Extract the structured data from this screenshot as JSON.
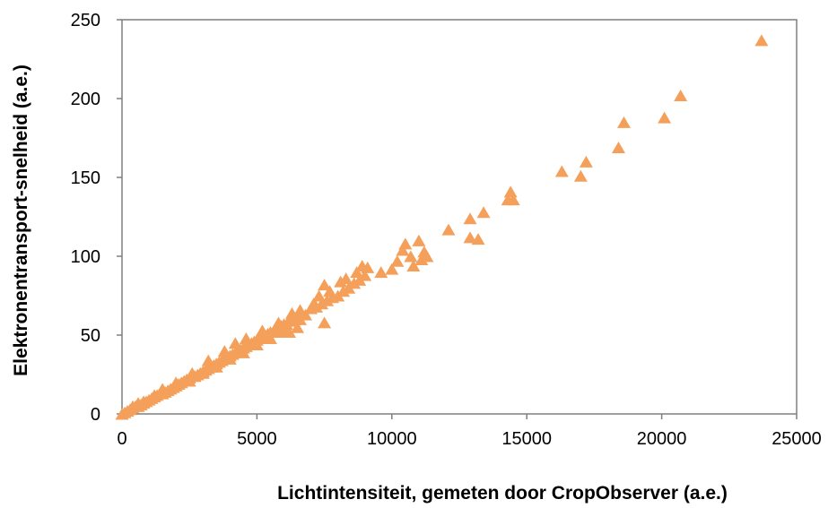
{
  "chart_data": {
    "type": "scatter",
    "title": "",
    "xlabel": "Lichtintensiteit, gemeten door CropObserver (a.e.)",
    "ylabel": "Elektronentransport-snelheid (a.e.)",
    "xlim": [
      0,
      25000
    ],
    "ylim": [
      0,
      250
    ],
    "xticks": [
      "0",
      "5000",
      "10000",
      "15000",
      "20000",
      "25000"
    ],
    "yticks": [
      "0",
      "50",
      "100",
      "150",
      "200",
      "250"
    ],
    "xtick_values": [
      0,
      5000,
      10000,
      15000,
      20000,
      25000
    ],
    "ytick_values": [
      0,
      50,
      100,
      150,
      200,
      250
    ],
    "grid": false,
    "legend": "none",
    "marker": "triangle",
    "marker_color": "#F5A05A",
    "series": [
      {
        "values": [
          [
            0,
            0
          ],
          [
            100,
            1
          ],
          [
            200,
            2
          ],
          [
            300,
            3
          ],
          [
            400,
            4
          ],
          [
            500,
            5
          ],
          [
            600,
            5
          ],
          [
            700,
            6
          ],
          [
            800,
            7
          ],
          [
            900,
            8
          ],
          [
            1000,
            9
          ],
          [
            1100,
            10
          ],
          [
            1200,
            11
          ],
          [
            1300,
            12
          ],
          [
            1400,
            13
          ],
          [
            1500,
            13
          ],
          [
            1600,
            14
          ],
          [
            1700,
            15
          ],
          [
            1800,
            16
          ],
          [
            1900,
            17
          ],
          [
            2000,
            18
          ],
          [
            2100,
            19
          ],
          [
            2200,
            20
          ],
          [
            2300,
            21
          ],
          [
            2400,
            22
          ],
          [
            2500,
            23
          ],
          [
            2600,
            24
          ],
          [
            2700,
            24
          ],
          [
            2800,
            25
          ],
          [
            2900,
            26
          ],
          [
            3000,
            27
          ],
          [
            3100,
            28
          ],
          [
            3200,
            29
          ],
          [
            3300,
            30
          ],
          [
            3400,
            31
          ],
          [
            3500,
            32
          ],
          [
            3600,
            33
          ],
          [
            3700,
            34
          ],
          [
            3800,
            35
          ],
          [
            3900,
            36
          ],
          [
            4000,
            37
          ],
          [
            4100,
            38
          ],
          [
            4200,
            39
          ],
          [
            4300,
            40
          ],
          [
            4400,
            41
          ],
          [
            4500,
            42
          ],
          [
            4600,
            43
          ],
          [
            4700,
            44
          ],
          [
            4800,
            45
          ],
          [
            4900,
            46
          ],
          [
            5000,
            47
          ],
          [
            5100,
            48
          ],
          [
            5200,
            49
          ],
          [
            5300,
            50
          ],
          [
            5400,
            51
          ],
          [
            5500,
            52
          ],
          [
            5600,
            52
          ],
          [
            5700,
            53
          ],
          [
            5800,
            54
          ],
          [
            5900,
            56
          ],
          [
            6000,
            57
          ],
          [
            6100,
            57
          ],
          [
            6200,
            59
          ],
          [
            6400,
            60
          ],
          [
            6500,
            62
          ],
          [
            6800,
            63
          ],
          [
            7000,
            67
          ],
          [
            7200,
            68
          ],
          [
            7400,
            70
          ],
          [
            7600,
            72
          ],
          [
            7800,
            74
          ],
          [
            8000,
            75
          ],
          [
            8200,
            78
          ],
          [
            8400,
            80
          ],
          [
            8600,
            83
          ],
          [
            8800,
            85
          ],
          [
            9000,
            88
          ],
          [
            2500,
            21
          ],
          [
            3000,
            26
          ],
          [
            3500,
            30
          ],
          [
            4000,
            35
          ],
          [
            4500,
            39
          ],
          [
            5000,
            44
          ],
          [
            5500,
            48
          ],
          [
            6000,
            52
          ],
          [
            6500,
            55
          ],
          [
            3200,
            34
          ],
          [
            3800,
            40
          ],
          [
            4200,
            45
          ],
          [
            4600,
            48
          ],
          [
            5200,
            53
          ],
          [
            5800,
            58
          ],
          [
            6300,
            64
          ],
          [
            6600,
            66
          ],
          [
            7100,
            70
          ],
          [
            7300,
            75
          ],
          [
            7500,
            82
          ],
          [
            7700,
            78
          ],
          [
            8100,
            84
          ],
          [
            8300,
            86
          ],
          [
            8700,
            90
          ],
          [
            8900,
            94
          ],
          [
            9100,
            93
          ],
          [
            9600,
            90
          ],
          [
            7500,
            58
          ],
          [
            6200,
            52
          ],
          [
            6600,
            60
          ],
          [
            1500,
            16
          ],
          [
            2000,
            20
          ],
          [
            2600,
            26
          ],
          [
            1200,
            12
          ],
          [
            800,
            8
          ],
          [
            400,
            5
          ],
          [
            600,
            7
          ],
          [
            10000,
            92
          ],
          [
            10200,
            97
          ],
          [
            10400,
            104
          ],
          [
            10500,
            108
          ],
          [
            10700,
            100
          ],
          [
            10800,
            94
          ],
          [
            11000,
            110
          ],
          [
            11100,
            98
          ],
          [
            11200,
            103
          ],
          [
            11300,
            100
          ],
          [
            12100,
            117
          ],
          [
            12900,
            124
          ],
          [
            12900,
            112
          ],
          [
            13200,
            111
          ],
          [
            13400,
            128
          ],
          [
            14300,
            136
          ],
          [
            14400,
            141
          ],
          [
            14500,
            136
          ],
          [
            16300,
            154
          ],
          [
            17000,
            151
          ],
          [
            17200,
            160
          ],
          [
            18400,
            169
          ],
          [
            18600,
            185
          ],
          [
            20100,
            188
          ],
          [
            20700,
            202
          ],
          [
            23700,
            237
          ]
        ]
      }
    ]
  }
}
